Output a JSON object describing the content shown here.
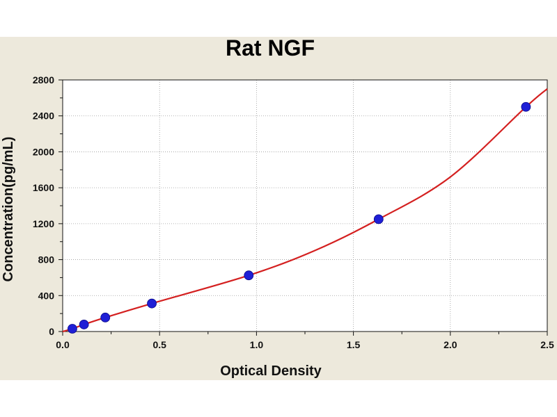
{
  "chart_data": {
    "type": "scatter",
    "title": "Rat NGF",
    "xlabel": "Optical Density",
    "ylabel": "Concentration(pg/mL)",
    "xlim": [
      0,
      2.5
    ],
    "ylim": [
      0,
      2800
    ],
    "x_ticks": [
      "0.0",
      "0.5",
      "1.0",
      "1.5",
      "2.0",
      "2.5"
    ],
    "y_ticks": [
      "0",
      "400",
      "800",
      "1200",
      "1600",
      "2000",
      "2400",
      "2800"
    ],
    "grid": true,
    "legend": "none",
    "series": [
      {
        "marker": "circle",
        "color": "#1f1fd6",
        "points": [
          {
            "x": 0.05,
            "y": 31
          },
          {
            "x": 0.11,
            "y": 78
          },
          {
            "x": 0.22,
            "y": 156
          },
          {
            "x": 0.46,
            "y": 312
          },
          {
            "x": 0.96,
            "y": 625
          },
          {
            "x": 1.63,
            "y": 1250
          },
          {
            "x": 2.39,
            "y": 2500
          }
        ]
      },
      {
        "type": "line",
        "color": "#d42020",
        "fit_points": [
          {
            "x": 0.0,
            "y": 0
          },
          {
            "x": 0.05,
            "y": 31
          },
          {
            "x": 0.11,
            "y": 78
          },
          {
            "x": 0.22,
            "y": 156
          },
          {
            "x": 0.46,
            "y": 312
          },
          {
            "x": 0.96,
            "y": 625
          },
          {
            "x": 1.3,
            "y": 900
          },
          {
            "x": 1.63,
            "y": 1250
          },
          {
            "x": 2.0,
            "y": 1720
          },
          {
            "x": 2.39,
            "y": 2500
          },
          {
            "x": 2.5,
            "y": 2700
          }
        ]
      }
    ]
  }
}
